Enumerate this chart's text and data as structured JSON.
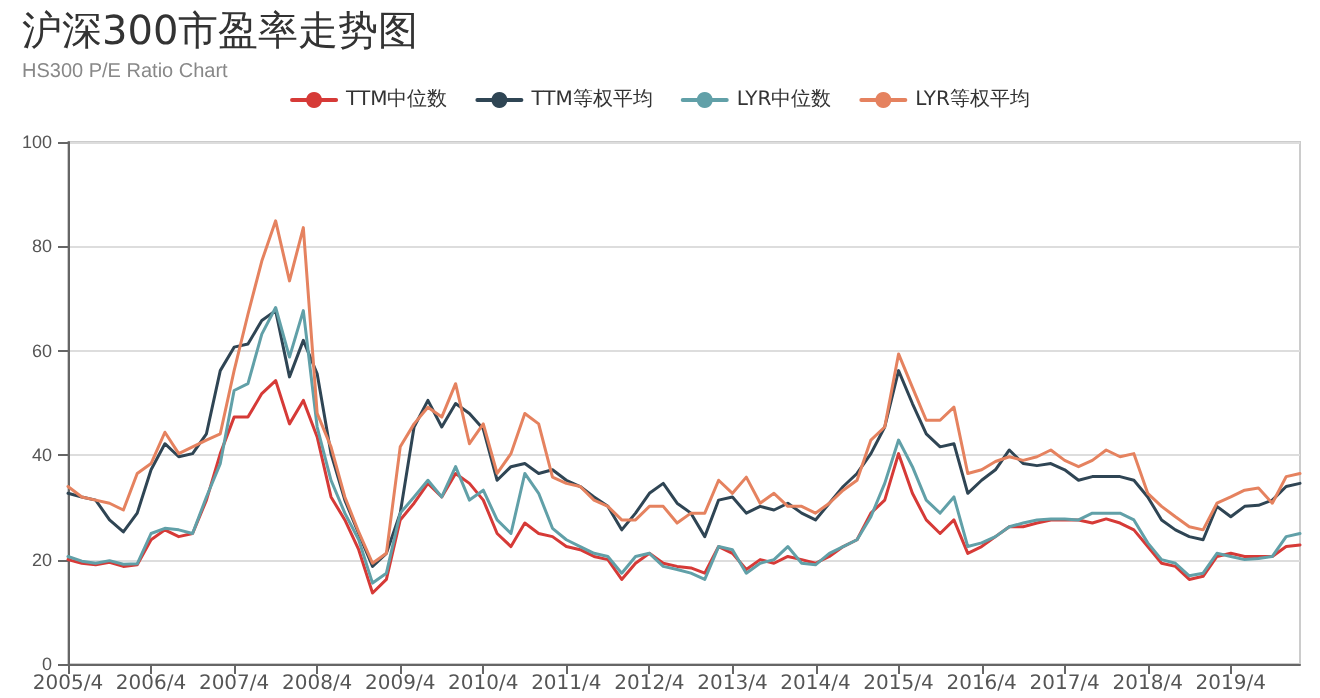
{
  "chart_data": {
    "type": "line",
    "title": "沪深300市盈率走势图",
    "subtitle": "HS300 P/E Ratio Chart",
    "categories": [
      "2005/4",
      null,
      null,
      null,
      null,
      null,
      "2006/4",
      null,
      null,
      null,
      null,
      null,
      "2007/4",
      null,
      null,
      null,
      null,
      null,
      "2008/4",
      null,
      null,
      null,
      null,
      null,
      "2009/4",
      null,
      null,
      null,
      null,
      null,
      "2010/4",
      null,
      null,
      null,
      null,
      null,
      "2011/4",
      null,
      null,
      null,
      null,
      null,
      "2012/4",
      null,
      null,
      null,
      null,
      null,
      "2013/4",
      null,
      null,
      null,
      null,
      null,
      "2014/4",
      null,
      null,
      null,
      null,
      null,
      "2015/4",
      null,
      null,
      null,
      null,
      null,
      "2016/4",
      null,
      null,
      null,
      null,
      null,
      "2017/4",
      null,
      null,
      null,
      null,
      null,
      "2018/4",
      null,
      null,
      null,
      null,
      null,
      "2019/4",
      null,
      null,
      null,
      null,
      null
    ],
    "series": [
      {
        "name": "TTM中位数",
        "color": "#d63a37",
        "values": [
          20,
          19.3,
          19,
          19.5,
          18.7,
          19,
          23.8,
          25.7,
          24.4,
          25,
          31.4,
          40.3,
          47.3,
          47.3,
          51.8,
          54.3,
          46,
          50.5,
          43.5,
          32,
          27.6,
          21.9,
          13.6,
          16.2,
          27.6,
          30.8,
          34.6,
          32,
          36.5,
          34.6,
          31.4,
          25,
          22.5,
          27,
          25,
          24.4,
          22.5,
          21.9,
          20.6,
          20,
          16.2,
          19.3,
          21.2,
          19.3,
          18.7,
          18.4,
          17.4,
          22.5,
          21.2,
          18.1,
          20,
          19.3,
          20.6,
          20,
          19.3,
          20.6,
          22.5,
          23.8,
          28.9,
          31.4,
          40.3,
          32.7,
          27.6,
          25,
          27.6,
          21.2,
          22.5,
          24.4,
          26.3,
          26.3,
          27,
          27.6,
          27.6,
          27.6,
          27,
          27.8,
          27,
          25.7,
          22.5,
          19.3,
          18.7,
          16.2,
          16.8,
          20.6,
          21.2,
          20.6,
          20.6,
          20.6,
          22.5,
          22.8
        ]
      },
      {
        "name": "TTM等权平均",
        "color": "#2f4554",
        "values": [
          32.7,
          32,
          31.4,
          27.6,
          25.3,
          28.9,
          37.2,
          42.2,
          39.7,
          40.3,
          44.1,
          56.2,
          60.7,
          61.3,
          65.8,
          67.7,
          55,
          62,
          55.6,
          40.3,
          31.4,
          25,
          18.7,
          21.2,
          28.9,
          45.4,
          50.5,
          45.4,
          49.9,
          48,
          45,
          35.2,
          37.8,
          38.4,
          36.5,
          37.2,
          35.2,
          34,
          32,
          30.2,
          25.7,
          28.9,
          32.7,
          34.6,
          30.8,
          28.9,
          24.4,
          31.4,
          32,
          28.9,
          30.2,
          29.5,
          30.8,
          28.9,
          27.6,
          30.8,
          34,
          36.5,
          40.3,
          45.4,
          56.2,
          49.9,
          44.1,
          41.6,
          42.2,
          32.7,
          35.2,
          37.2,
          41,
          38.4,
          38,
          38.4,
          37.2,
          35.2,
          35.9,
          35.9,
          35.9,
          35.2,
          32,
          27.6,
          25.7,
          24.4,
          23.8,
          30.2,
          28.2,
          30.2,
          30.4,
          31.4,
          34,
          34.6
        ]
      },
      {
        "name": "LYR中位数",
        "color": "#61a0a8",
        "values": [
          20.6,
          19.7,
          19.3,
          19.8,
          19.1,
          19.2,
          25,
          26,
          25.7,
          25,
          32,
          38.4,
          52.4,
          53.7,
          63.2,
          68.3,
          58.8,
          67.7,
          45.4,
          35.2,
          28.9,
          23.8,
          15.5,
          17.4,
          28.9,
          32,
          35.2,
          32,
          37.8,
          31.4,
          33.3,
          27.6,
          25,
          36.5,
          32.7,
          26,
          23.8,
          22.5,
          21.2,
          20.6,
          17.4,
          20.6,
          21.2,
          18.7,
          18.1,
          17.4,
          16.2,
          22.5,
          21.9,
          17.4,
          19.3,
          20,
          22.5,
          19.3,
          19,
          21.2,
          22.5,
          23.8,
          28.2,
          34.6,
          42.9,
          37.8,
          31.4,
          28.9,
          32,
          22.5,
          23.2,
          24.4,
          26.3,
          27,
          27.6,
          27.8,
          27.8,
          27.6,
          28.9,
          28.9,
          28.9,
          27.6,
          23.2,
          20,
          19.3,
          16.9,
          17.4,
          21.2,
          20.6,
          20,
          20.2,
          20.6,
          24.4,
          25
        ]
      },
      {
        "name": "LYR等权平均",
        "color": "#e5825f",
        "values": [
          34,
          32,
          31.4,
          30.8,
          29.5,
          36.5,
          38.4,
          44.4,
          40.3,
          41.6,
          42.9,
          44.1,
          56.2,
          67,
          77.2,
          84.9,
          73.4,
          83.6,
          48,
          41.6,
          32,
          25.3,
          19.3,
          21.2,
          41.6,
          46,
          49.2,
          47.3,
          53.7,
          42.2,
          46,
          36.5,
          40.3,
          48,
          46,
          35.8,
          34.6,
          34,
          31.4,
          30.2,
          27.6,
          27.6,
          30.2,
          30.2,
          27,
          28.9,
          28.9,
          35.2,
          32.7,
          35.8,
          30.8,
          32.7,
          30.2,
          30.2,
          28.9,
          30.8,
          33.3,
          35.2,
          42.9,
          45.4,
          59.4,
          53,
          46.7,
          46.7,
          49.2,
          36.5,
          37.2,
          38.8,
          39.7,
          39,
          39.7,
          41,
          39,
          37.8,
          39,
          41,
          39.7,
          40.3,
          32.7,
          30.2,
          28.2,
          26.3,
          25.7,
          30.8,
          32,
          33.3,
          33.7,
          30.8,
          35.9,
          36.5
        ]
      }
    ],
    "ylim": [
      0,
      100
    ],
    "yticks": [
      0,
      20,
      40,
      60,
      80,
      100
    ],
    "grid": "y",
    "legend": "top",
    "marker": "none",
    "line_style": "solid"
  }
}
